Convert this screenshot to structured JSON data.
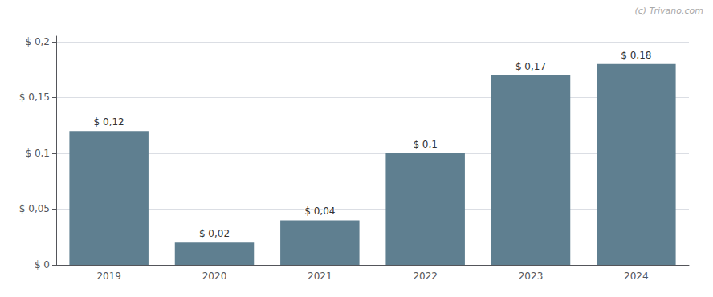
{
  "chart_data": {
    "type": "bar",
    "categories": [
      "2019",
      "2020",
      "2021",
      "2022",
      "2023",
      "2024"
    ],
    "values": [
      0.12,
      0.02,
      0.04,
      0.1,
      0.17,
      0.18
    ],
    "value_labels": [
      "$ 0,12",
      "$ 0,02",
      "$ 0,04",
      "$ 0,1",
      "$ 0,17",
      "$ 0,18"
    ],
    "data_labels": true,
    "color": "#5f7f90",
    "ylim": [
      0,
      0.205
    ],
    "yticks": [
      {
        "value": 0,
        "label": "$ 0"
      },
      {
        "value": 0.05,
        "label": "$ 0,05"
      },
      {
        "value": 0.1,
        "label": "$ 0,1"
      },
      {
        "value": 0.15,
        "label": "$ 0,15"
      },
      {
        "value": 0.2,
        "label": "$ 0,2"
      }
    ],
    "grid": true,
    "annotation": "(c) Trivano.com"
  }
}
